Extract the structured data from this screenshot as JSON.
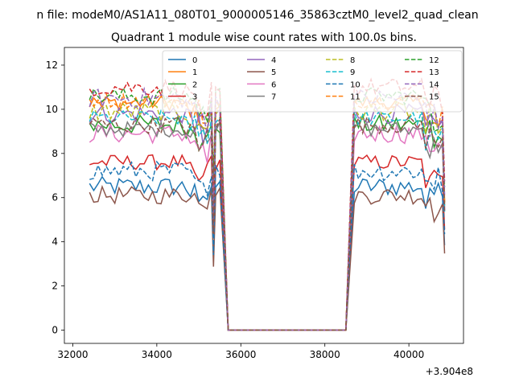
{
  "chart_data": {
    "type": "line",
    "suptitle": "n file: modeM0/AS1A11_080T01_9000005146_35863cztM0_level2_quad_clean",
    "title": "Quadrant 1 module wise count rates with 100.0s bins.",
    "xlabel": "",
    "ylabel": "",
    "x_offset_label": "+3.904e8",
    "xlim": [
      31800,
      41300
    ],
    "ylim": [
      -0.6,
      12.8
    ],
    "x_ticks": [
      32000,
      34000,
      36000,
      38000,
      40000
    ],
    "x_tick_labels": [
      "32000",
      "34000",
      "36000",
      "38000",
      "40000"
    ],
    "y_ticks": [
      0,
      2,
      4,
      6,
      8,
      10,
      12
    ],
    "y_tick_labels": [
      "0",
      "2",
      "4",
      "6",
      "8",
      "10",
      "12"
    ],
    "grid": false,
    "legend_placement": "upper-center",
    "legend_columns": 4,
    "gap": {
      "drop_start": 35400,
      "zero_start": 35700,
      "zero_end": 38500,
      "rise_end": 38700,
      "zero_value": 0
    },
    "segments": [
      {
        "x_start": 32400,
        "x_end": 35300,
        "step": 100
      },
      {
        "x_start": 35400,
        "x_end": 35500,
        "step": 100
      },
      {
        "x_start": 38700,
        "x_end": 40800,
        "step": 100
      }
    ],
    "series": [
      {
        "name": "0",
        "color": "#1f77b4",
        "dash": "solid",
        "base": 6.5,
        "spread": 0.45
      },
      {
        "name": "1",
        "color": "#ff7f0e",
        "dash": "solid",
        "base": 10.3,
        "spread": 0.35
      },
      {
        "name": "2",
        "color": "#2ca02c",
        "dash": "solid",
        "base": 9.3,
        "spread": 0.45
      },
      {
        "name": "3",
        "color": "#d62728",
        "dash": "solid",
        "base": 7.6,
        "spread": 0.35
      },
      {
        "name": "4",
        "color": "#9467bd",
        "dash": "solid",
        "base": 9.8,
        "spread": 0.45
      },
      {
        "name": "5",
        "color": "#8c564b",
        "dash": "solid",
        "base": 6.1,
        "spread": 0.4
      },
      {
        "name": "6",
        "color": "#e377c2",
        "dash": "solid",
        "base": 8.9,
        "spread": 0.45
      },
      {
        "name": "7",
        "color": "#7f7f7f",
        "dash": "solid",
        "base": 9.1,
        "spread": 0.35
      },
      {
        "name": "8",
        "color": "#bcbd22",
        "dash": "dashed",
        "base": 9.9,
        "spread": 0.45
      },
      {
        "name": "9",
        "color": "#17becf",
        "dash": "dashed",
        "base": 9.6,
        "spread": 0.35
      },
      {
        "name": "10",
        "color": "#1f77b4",
        "dash": "dashed",
        "base": 7.2,
        "spread": 0.45
      },
      {
        "name": "11",
        "color": "#ff7f0e",
        "dash": "dashed",
        "base": 10.4,
        "spread": 0.35
      },
      {
        "name": "12",
        "color": "#2ca02c",
        "dash": "dashed",
        "base": 10.6,
        "spread": 0.4
      },
      {
        "name": "13",
        "color": "#d62728",
        "dash": "dashed",
        "base": 11.0,
        "spread": 0.4
      },
      {
        "name": "14",
        "color": "#9467bd",
        "dash": "dashed",
        "base": 10.5,
        "spread": 0.45
      },
      {
        "name": "15",
        "color": "#8c564b",
        "dash": "dashed",
        "base": 9.3,
        "spread": 0.4
      }
    ]
  }
}
